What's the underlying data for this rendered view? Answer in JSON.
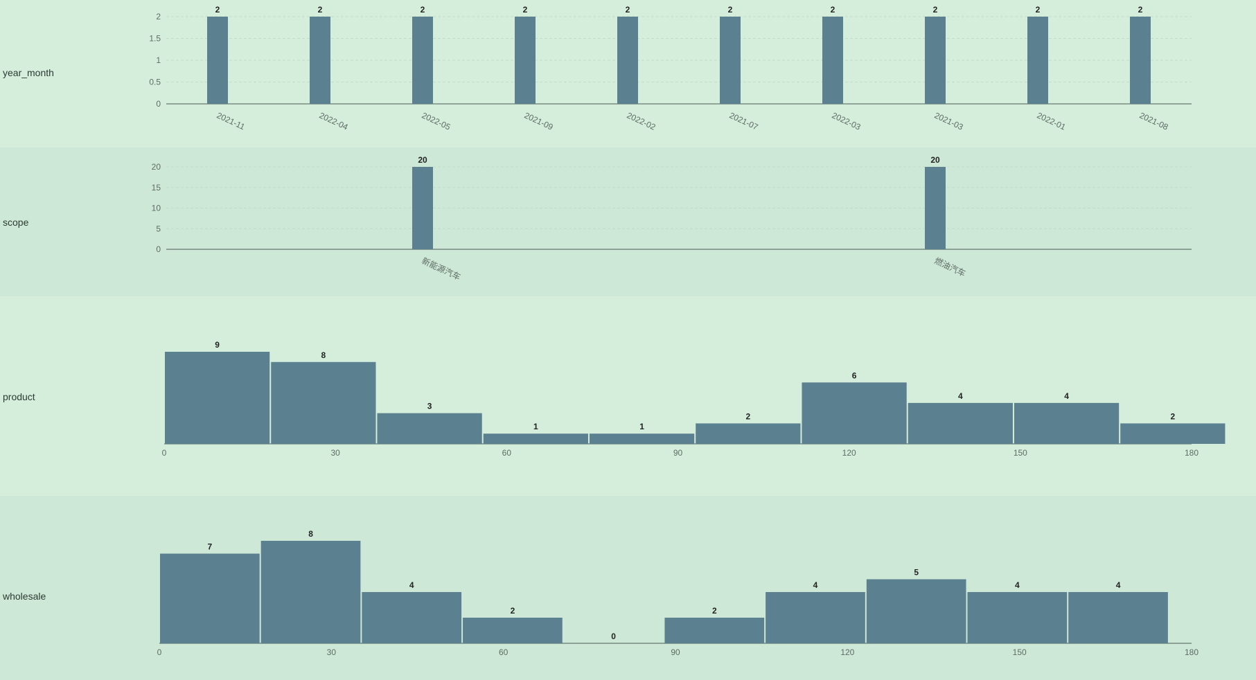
{
  "colors": {
    "bar": "#5b8090",
    "axis": "#4a5a55",
    "grid": "#c2dccb"
  },
  "chart_data": [
    {
      "type": "bar",
      "row_label": "year_month",
      "categories": [
        "2021-11",
        "2022-04",
        "2022-05",
        "2021-09",
        "2022-02",
        "2021-07",
        "2022-03",
        "2021-03",
        "2022-01",
        "2021-08"
      ],
      "values": [
        2,
        2,
        2,
        2,
        2,
        2,
        2,
        2,
        2,
        2
      ],
      "yticks": [
        "0",
        "0.5",
        "1",
        "1.5",
        "2"
      ],
      "ylim": [
        0,
        2
      ],
      "grid": true
    },
    {
      "type": "bar",
      "row_label": "scope",
      "categories": [
        "新能源汽车",
        "燃油汽车"
      ],
      "values": [
        20,
        20
      ],
      "yticks": [
        "0",
        "5",
        "10",
        "15",
        "20"
      ],
      "ylim": [
        0,
        20
      ],
      "grid": true
    },
    {
      "type": "bar",
      "row_label": "product",
      "histogram": true,
      "bin_edges": [
        0,
        18.6,
        37.2,
        55.8,
        74.4,
        93.0,
        111.6,
        130.2,
        148.8,
        167.4,
        186.0
      ],
      "values": [
        9,
        8,
        3,
        1,
        1,
        2,
        6,
        4,
        4,
        2
      ],
      "xticks": [
        "0",
        "30",
        "60",
        "90",
        "120",
        "150",
        "180"
      ],
      "xlim": [
        0,
        180
      ],
      "grid": false
    },
    {
      "type": "bar",
      "row_label": "wholesale",
      "histogram": true,
      "bin_edges": [
        0,
        17.6,
        35.2,
        52.8,
        70.4,
        88.0,
        105.6,
        123.2,
        140.8,
        158.4,
        176.0
      ],
      "values": [
        7,
        8,
        4,
        2,
        0,
        2,
        4,
        5,
        4,
        4
      ],
      "xticks": [
        "0",
        "30",
        "60",
        "90",
        "120",
        "150",
        "180"
      ],
      "xlim": [
        0,
        180
      ],
      "grid": false
    }
  ]
}
